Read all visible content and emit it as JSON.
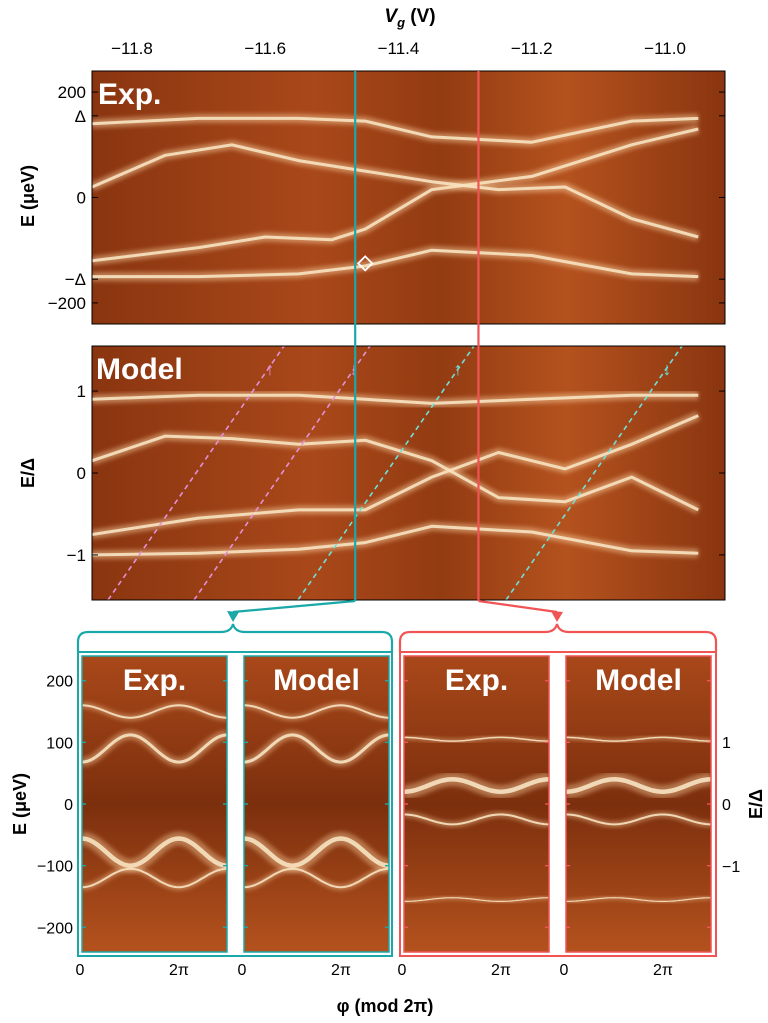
{
  "colors": {
    "bg_dark": "#7a2e0c",
    "bg_mid": "#a9481a",
    "line_glow": "#f7e3c2",
    "teal": "#1aa8a8",
    "red": "#f05454",
    "pink_dash": "#e58fd8",
    "cyan_dash": "#6fe0d8"
  },
  "top_axis": {
    "label_prefix": "V",
    "label_sub": "g",
    "label_unit": " (V)",
    "ticks": [
      "−11.8",
      "−11.6",
      "−11.4",
      "−11.2",
      "−11.0"
    ]
  },
  "panel_exp": {
    "title": "Exp.",
    "ylabel": "E (μeV)",
    "yticks": [
      "200",
      "Δ",
      "0",
      "−Δ",
      "−200"
    ]
  },
  "panel_model": {
    "title": "Model",
    "ylabel": "E/Δ",
    "yticks": [
      "1",
      "0",
      "−1"
    ],
    "arrows": [
      "↑",
      "↓",
      "↑",
      "↓"
    ]
  },
  "bottom": {
    "titles": [
      "Exp.",
      "Model",
      "Exp.",
      "Model"
    ],
    "left_ylabel": "E (μeV)",
    "left_yticks": [
      "200",
      "100",
      "0",
      "−100",
      "−200"
    ],
    "right_ylabel": "E/Δ",
    "right_yticks": [
      "1",
      "0",
      "−1"
    ],
    "xticks": [
      "0",
      "2π"
    ],
    "xlabel": "φ (mod 2π)"
  },
  "chart_data": [
    {
      "type": "heatmap",
      "title": "Exp.",
      "x_label": "Vg (V)",
      "y_label": "E (μeV)",
      "x_range": [
        -11.86,
        -10.91
      ],
      "y_range": [
        -240,
        240
      ],
      "delta_ueV": 155,
      "cuts_Vg": [
        -11.465,
        -11.28
      ],
      "marker": {
        "Vg": -11.45,
        "E": -125,
        "shape": "diamond"
      },
      "lines_E": [
        {
          "x": [
            -11.86,
            -11.7,
            -11.55,
            -11.45,
            -11.35,
            -11.2,
            -11.05,
            -10.95
          ],
          "y": [
            -150,
            -150,
            -145,
            -130,
            -100,
            -110,
            -145,
            -150
          ]
        },
        {
          "x": [
            -11.86,
            -11.7,
            -11.6,
            -11.5,
            -11.45,
            -11.35,
            -11.2,
            -11.05,
            -10.95
          ],
          "y": [
            -120,
            -95,
            -75,
            -80,
            -60,
            15,
            40,
            100,
            130
          ]
        },
        {
          "x": [
            -11.86,
            -11.75,
            -11.65,
            -11.55,
            -11.45,
            -11.35,
            -11.25,
            -11.15,
            -11.05,
            -10.95
          ],
          "y": [
            20,
            80,
            100,
            70,
            50,
            30,
            15,
            20,
            -40,
            -75
          ]
        },
        {
          "x": [
            -11.86,
            -11.7,
            -11.55,
            -11.45,
            -11.35,
            -11.2,
            -11.05,
            -10.95
          ],
          "y": [
            140,
            150,
            150,
            145,
            115,
            105,
            145,
            150
          ]
        }
      ]
    },
    {
      "type": "heatmap",
      "title": "Model",
      "x_label": "Vg (V)",
      "y_label": "E/Δ",
      "x_range": [
        -11.86,
        -10.91
      ],
      "y_range": [
        -1.55,
        1.55
      ],
      "lines_E": [
        {
          "x": [
            -11.86,
            -11.7,
            -11.55,
            -11.45,
            -11.35,
            -11.2,
            -11.05,
            -10.95
          ],
          "y": [
            -1.0,
            -0.98,
            -0.93,
            -0.85,
            -0.65,
            -0.72,
            -0.95,
            -0.98
          ]
        },
        {
          "x": [
            -11.86,
            -11.7,
            -11.55,
            -11.45,
            -11.35,
            -11.25,
            -11.15,
            -11.05,
            -10.95
          ],
          "y": [
            -0.75,
            -0.55,
            -0.45,
            -0.45,
            -0.05,
            0.25,
            0.05,
            0.35,
            0.7
          ]
        },
        {
          "x": [
            -11.86,
            -11.75,
            -11.65,
            -11.55,
            -11.45,
            -11.35,
            -11.25,
            -11.15,
            -11.05,
            -10.95
          ],
          "y": [
            0.15,
            0.45,
            0.42,
            0.35,
            0.4,
            0.15,
            -0.3,
            -0.35,
            -0.05,
            -0.45
          ]
        },
        {
          "x": [
            -11.86,
            -11.7,
            -11.55,
            -11.45,
            -11.35,
            -11.2,
            -11.05,
            -10.95
          ],
          "y": [
            0.9,
            0.95,
            0.95,
            0.9,
            0.85,
            0.9,
            0.95,
            0.95
          ]
        }
      ]
    }
  ]
}
